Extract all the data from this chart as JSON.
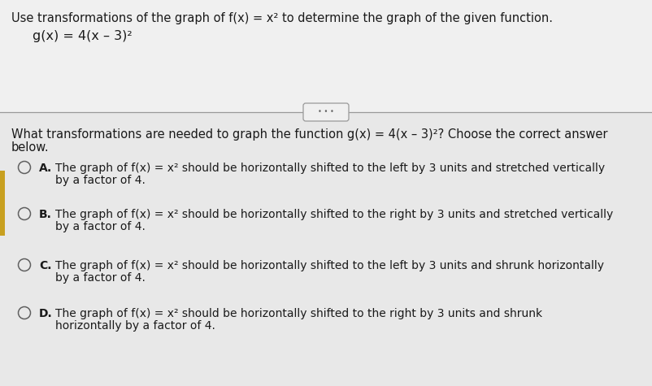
{
  "top_bg": "#f0f0f0",
  "bottom_bg": "#e8e8e8",
  "header_line1": "Use transformations of the graph of f(x) = x² to determine the graph of the given function.",
  "header_line2": "g(x) = 4(x – 3)²",
  "question_text": "What transformations are needed to graph the function g(x) = 4(x – 3)²? Choose the correct answer\nbelow.",
  "options": [
    {
      "label": "A.",
      "line1": "The graph of f(x) = x² should be horizontally shifted to the left by 3 units and stretched vertically",
      "line2": "by a factor of 4."
    },
    {
      "label": "B.",
      "line1": "The graph of f(x) = x² should be horizontally shifted to the right by 3 units and stretched vertically",
      "line2": "by a factor of 4."
    },
    {
      "label": "C.",
      "line1": "The graph of f(x) = x² should be horizontally shifted to the left by 3 units and shrunk horizontally",
      "line2": "by a factor of 4."
    },
    {
      "label": "D.",
      "line1": "The graph of f(x) = x² should be horizontally shifted to the right by 3 units and shrunk",
      "line2": "horizontally by a factor of 4."
    }
  ],
  "font_size_header": 10.5,
  "font_size_subheader": 11.5,
  "font_size_question": 10.5,
  "font_size_options": 10.0,
  "text_color": "#1a1a1a",
  "circle_color": "#606060",
  "divider_color": "#999999",
  "left_bar_color": "#c8a020",
  "dots_color": "#666666"
}
